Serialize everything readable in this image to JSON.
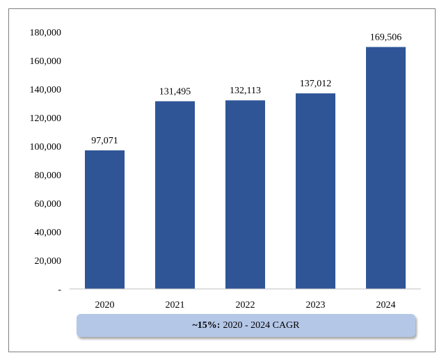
{
  "chart_data": {
    "type": "bar",
    "categories": [
      "2020",
      "2021",
      "2022",
      "2023",
      "2024"
    ],
    "values": [
      97071,
      131495,
      132113,
      137012,
      169506
    ],
    "data_labels": [
      "97,071",
      "131,495",
      "132,113",
      "137,012",
      "169,506"
    ],
    "y_ticks": [
      "-",
      "20,000",
      "40,000",
      "60,000",
      "80,000",
      "100,000",
      "120,000",
      "140,000",
      "160,000",
      "180,000"
    ],
    "ylim": [
      0,
      180000
    ],
    "grid": false,
    "bar_color": "#2f5597"
  },
  "banner": {
    "bold": "~15%:",
    "text": "2020 - 2024 CAGR",
    "color": "#b4c7e7"
  }
}
